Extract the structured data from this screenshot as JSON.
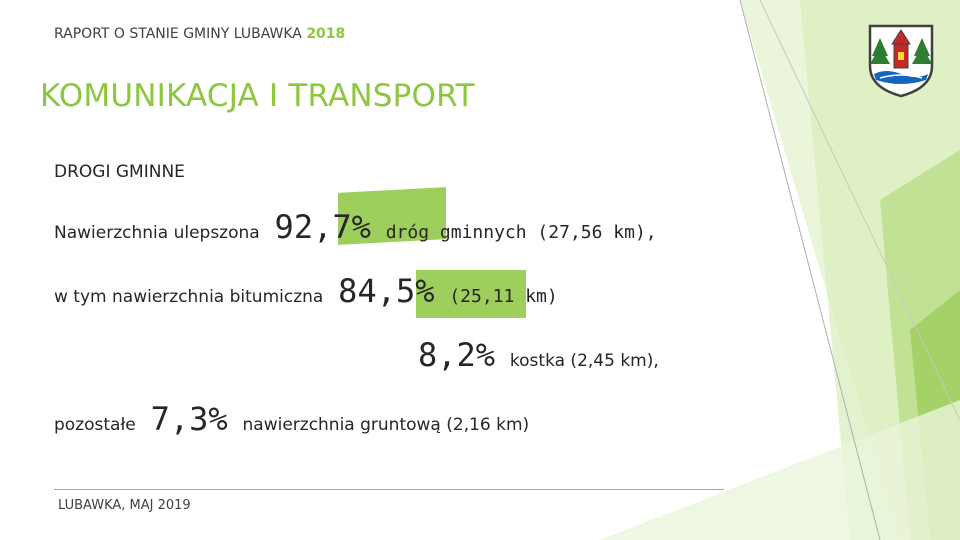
{
  "header": {
    "report_prefix": "RAPORT O STANIE GMINY LUBAWKA",
    "year": "2018"
  },
  "title": "KOMUNIKACJA I TRANSPORT",
  "section": "DROGI GMINNE",
  "lines": [
    {
      "label": "Nawierzchnia ulepszona",
      "value": "92,7%",
      "rest": "dróg gminnych (27,56 km),"
    },
    {
      "label": "w tym nawierzchnia bitumiczna",
      "value": "84,5%",
      "rest": "(25,11 km)"
    },
    {
      "value": "8,2%",
      "rest": "kostka (2,45 km),"
    },
    {
      "label": "pozostałe",
      "value": "7,3%",
      "rest": "nawierzchnia gruntową (2,16 km)"
    }
  ],
  "footer": "LUBAWKA, MAJ 2019",
  "colors": {
    "accent": "#8dc63f",
    "text": "#262626"
  },
  "icons": {
    "crest": "coat-of-arms-icon"
  }
}
